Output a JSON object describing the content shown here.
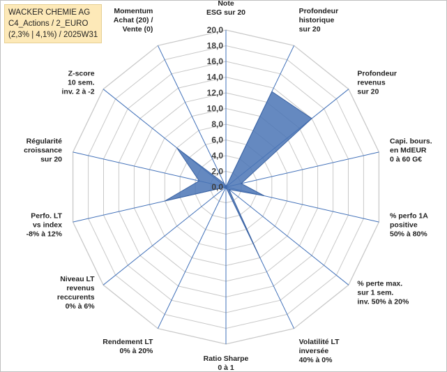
{
  "header": {
    "lines": [
      "WACKER CHEMIE AG",
      "C4_Actions / 2_EURO",
      "(2,3% | 4,1%) / 2025W31"
    ]
  },
  "chart_data": {
    "type": "radar",
    "rmin": 0,
    "rmax": 20,
    "ticks": [
      "0,0",
      "2,0",
      "4,0",
      "6,0",
      "8,0",
      "10,0",
      "12,0",
      "14,0",
      "16,0",
      "18,0",
      "20,0"
    ],
    "axes": [
      {
        "lines": [
          "Note",
          "ESG sur 20"
        ],
        "value": 0
      },
      {
        "lines": [
          "Profondeur",
          "historique",
          "sur 20"
        ],
        "value": 13.5
      },
      {
        "lines": [
          "Profondeur",
          "revenus",
          "sur 20"
        ],
        "value": 14.0
      },
      {
        "lines": [
          "Capi. bours.",
          "en MdEUR",
          "0 à 60 G€"
        ],
        "value": 2.0
      },
      {
        "lines": [
          "% perfo 1A",
          "positive",
          "50% à 80%"
        ],
        "value": 5.0
      },
      {
        "lines": [
          "% perte max.",
          "sur 1 sem.",
          "inv. 50% à 20%"
        ],
        "value": 0.5
      },
      {
        "lines": [
          "Volatilité LT",
          "inversée",
          "40% à 0%"
        ],
        "value": 10.0
      },
      {
        "lines": [
          "Ratio Sharpe",
          "0 à 1"
        ],
        "value": 0
      },
      {
        "lines": [
          "Rendement LT",
          "0% à 20%"
        ],
        "value": 0
      },
      {
        "lines": [
          "Niveau LT",
          "revenus",
          "reccurents",
          "0% à 6%"
        ],
        "value": 0
      },
      {
        "lines": [
          "Perfo. LT",
          "vs index",
          "-8% à 12%"
        ],
        "value": 8.0
      },
      {
        "lines": [
          "Régularité",
          "croissance",
          "sur 20"
        ],
        "value": 3.5
      },
      {
        "lines": [
          "Z-score",
          "10 sem.",
          "inv. 2 à -2"
        ],
        "value": 8.0
      },
      {
        "lines": [
          "Momentum",
          "Achat (20) /",
          "Vente (0)"
        ],
        "value": 0.5
      }
    ],
    "colors": {
      "fill": "#4a74b5",
      "stroke": "#3b63a3",
      "grid": "#c8c8c8",
      "spoke": "#3f6fb8"
    }
  }
}
